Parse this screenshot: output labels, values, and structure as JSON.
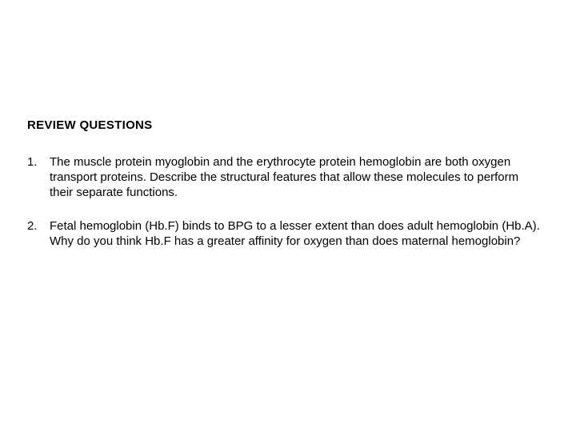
{
  "heading": "REVIEW QUESTIONS",
  "heading_fontsize": 15,
  "heading_fontweight": "bold",
  "body_fontsize": 15,
  "text_color": "#000000",
  "background_color": "#ffffff",
  "font_family": "Verdana, Geneva, sans-serif",
  "line_height": 1.28,
  "questions": [
    {
      "number": "1.",
      "text": "The muscle protein myoglobin and the erythrocyte protein hemoglobin are both oxygen transport proteins. Describe the structural features that allow these molecules to perform their separate functions."
    },
    {
      "number": "2.",
      "text": "Fetal hemoglobin (Hb.F) binds to BPG to a lesser extent than does adult hemoglobin (Hb.A). Why do you think Hb.F has a greater affinity for oxygen than does maternal hemoglobin?"
    }
  ]
}
